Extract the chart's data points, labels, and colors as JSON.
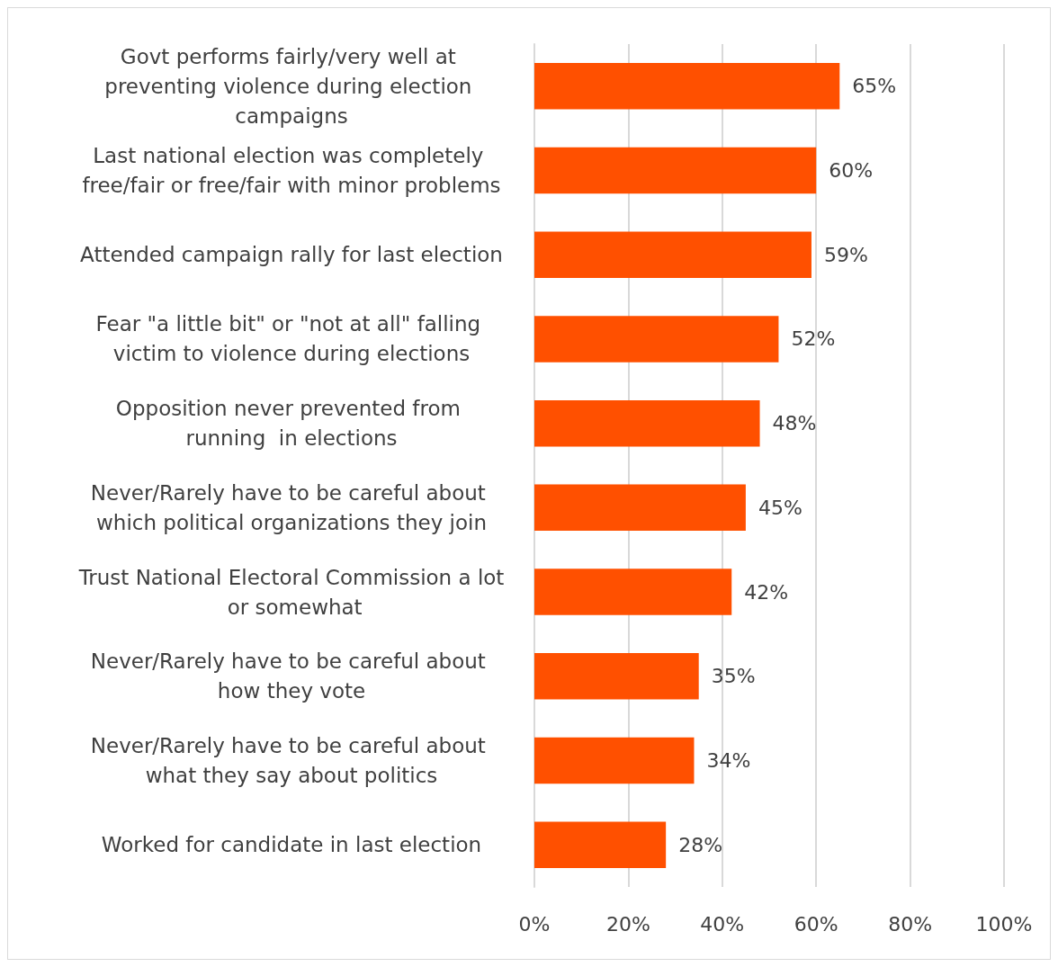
{
  "chart_data": {
    "type": "bar",
    "orientation": "horizontal",
    "categories": [
      "Govt performs fairly/very well at preventing violence during election campaigns",
      "Last national election was completely free/fair or free/fair with minor problems",
      "Attended campaign rally for last election",
      "Fear \"a little bit\" or \"not at all\" falling victim to violence during elections",
      "Opposition never prevented from running  in elections",
      "Never/Rarely have to be careful about which political organizations they join",
      "Trust National Electoral Commission a lot or somewhat",
      "Never/Rarely have to be careful about how they vote",
      "Never/Rarely have to be careful about what they say about politics",
      "Worked for candidate in last election"
    ],
    "values": [
      65,
      60,
      59,
      52,
      48,
      45,
      42,
      35,
      34,
      28
    ],
    "value_labels": [
      "65%",
      "60%",
      "59%",
      "52%",
      "48%",
      "45%",
      "42%",
      "35%",
      "34%",
      "28%"
    ],
    "color": "#ff5000",
    "xlim": [
      0,
      100
    ],
    "xticks": [
      {
        "value": 0,
        "label": "0%"
      },
      {
        "value": 20,
        "label": "20%"
      },
      {
        "value": 40,
        "label": "40%"
      },
      {
        "value": 60,
        "label": "60%"
      },
      {
        "value": 80,
        "label": "80%"
      },
      {
        "value": 100,
        "label": "100%"
      }
    ],
    "grid": "x"
  }
}
